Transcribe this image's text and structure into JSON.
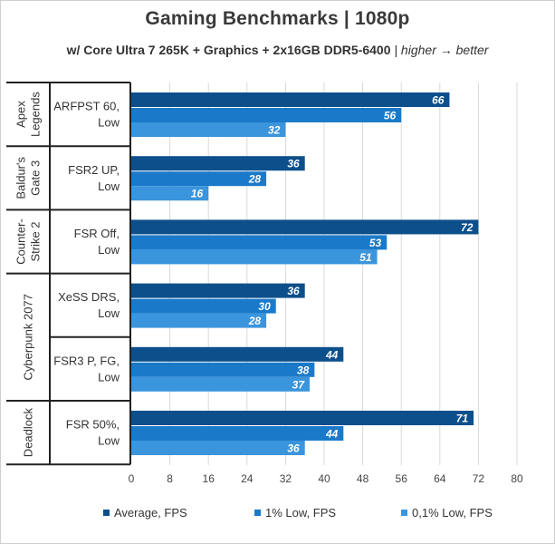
{
  "chart_data": {
    "type": "bar",
    "orientation": "horizontal",
    "title": "Gaming Benchmarks | 1080p",
    "subtitle": "w/ Core Ultra 7 265K + Graphics + 2x16GB DDR5-6400",
    "subtitle_note": "| higher → better",
    "xlim": [
      0,
      80
    ],
    "xticks": [
      0,
      8,
      16,
      24,
      32,
      40,
      48,
      56,
      64,
      72,
      80
    ],
    "grid": true,
    "legend_position": "bottom",
    "series": [
      {
        "name": "Average, FPS",
        "color": "#0d4f8b",
        "values": [
          66,
          36,
          72,
          36,
          44,
          71
        ]
      },
      {
        "name": "1% Low, FPS",
        "color": "#1a7ac9",
        "values": [
          56,
          28,
          53,
          30,
          38,
          44
        ]
      },
      {
        "name": "0,1% Low, FPS",
        "color": "#3b95dc",
        "values": [
          32,
          16,
          51,
          28,
          37,
          36
        ]
      }
    ],
    "games": [
      {
        "name": "Apex Legends",
        "lines": [
          "Apex",
          "Legends"
        ],
        "span": 1
      },
      {
        "name": "Baldur's Gate 3",
        "lines": [
          "Baldur's",
          "Gate 3"
        ],
        "span": 1
      },
      {
        "name": "Counter-Strike 2",
        "lines": [
          "Counter-",
          "Strike 2"
        ],
        "span": 1
      },
      {
        "name": "Cyberpunk 2077",
        "lines": [
          "Cyberpunk 2077"
        ],
        "span": 2
      },
      {
        "name": "Deadlock",
        "lines": [
          "Deadlock"
        ],
        "span": 1
      }
    ],
    "settings": [
      {
        "label": "ARFPST 60, Low",
        "lines": [
          "ARFPST 60,",
          "Low"
        ]
      },
      {
        "label": "FSR2 UP, Low",
        "lines": [
          "FSR2 UP,",
          "Low"
        ]
      },
      {
        "label": "FSR Off, Low",
        "lines": [
          "FSR Off,",
          "Low"
        ]
      },
      {
        "label": "XeSS DRS, Low",
        "lines": [
          "XeSS DRS,",
          "Low"
        ]
      },
      {
        "label": "FSR3 P, FG, Low",
        "lines": [
          "FSR3 P, FG,",
          "Low"
        ]
      },
      {
        "label": "FSR 50%, Low",
        "lines": [
          "FSR 50%,",
          "Low"
        ]
      }
    ]
  }
}
